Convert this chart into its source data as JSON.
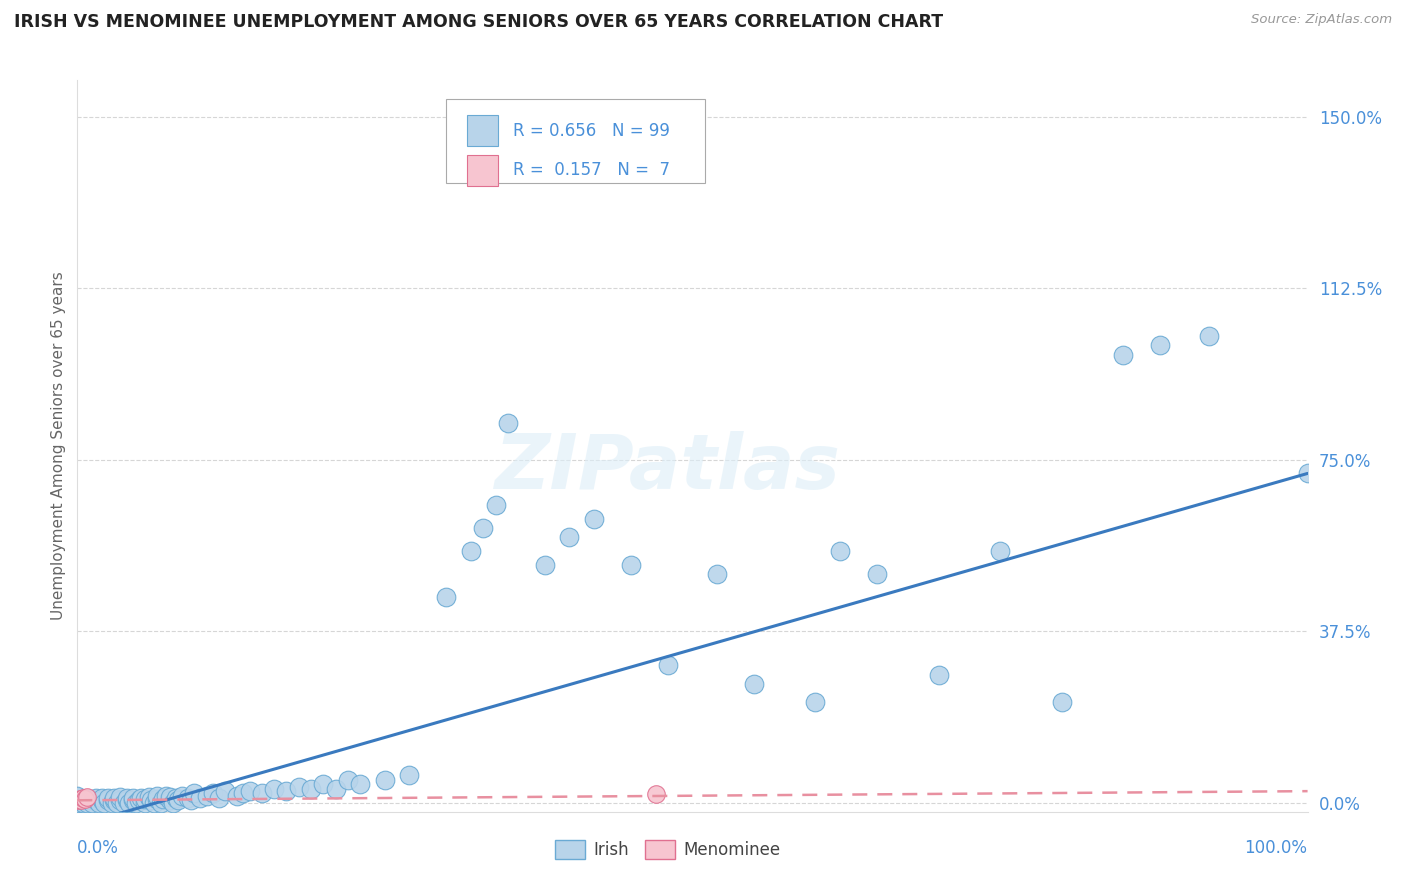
{
  "title": "IRISH VS MENOMINEE UNEMPLOYMENT AMONG SENIORS OVER 65 YEARS CORRELATION CHART",
  "source": "Source: ZipAtlas.com",
  "ylabel": "Unemployment Among Seniors over 65 years",
  "ytick_labels": [
    "0.0%",
    "37.5%",
    "75.0%",
    "112.5%",
    "150.0%"
  ],
  "ytick_values": [
    0.0,
    0.375,
    0.75,
    1.125,
    1.5
  ],
  "xmin": 0.0,
  "xmax": 1.0,
  "ymin": -0.02,
  "ymax": 1.58,
  "irish_color": "#b8d4ea",
  "irish_edge_color": "#6aaad4",
  "menominee_color": "#f7c5d0",
  "menominee_edge_color": "#e07090",
  "irish_line_color": "#3a7abf",
  "menominee_line_color": "#e890a0",
  "watermark": "ZIPatlas",
  "irish_R": "0.656",
  "irish_N": "99",
  "menominee_R": "0.157",
  "menominee_N": "7",
  "irish_x": [
    0.0,
    0.0,
    0.0,
    0.0,
    0.0,
    0.0,
    0.0,
    0.0,
    0.0,
    0.0,
    0.005,
    0.005,
    0.008,
    0.01,
    0.01,
    0.012,
    0.015,
    0.015,
    0.018,
    0.02,
    0.02,
    0.022,
    0.025,
    0.025,
    0.028,
    0.03,
    0.03,
    0.032,
    0.035,
    0.035,
    0.038,
    0.04,
    0.04,
    0.042,
    0.045,
    0.045,
    0.048,
    0.05,
    0.052,
    0.055,
    0.055,
    0.058,
    0.06,
    0.062,
    0.065,
    0.065,
    0.068,
    0.07,
    0.072,
    0.075,
    0.075,
    0.078,
    0.08,
    0.082,
    0.085,
    0.09,
    0.092,
    0.095,
    0.1,
    0.105,
    0.11,
    0.115,
    0.12,
    0.13,
    0.135,
    0.14,
    0.15,
    0.16,
    0.17,
    0.18,
    0.19,
    0.2,
    0.21,
    0.22,
    0.23,
    0.25,
    0.27,
    0.3,
    0.32,
    0.33,
    0.34,
    0.35,
    0.38,
    0.4,
    0.42,
    0.45,
    0.48,
    0.52,
    0.55,
    0.6,
    0.62,
    0.65,
    0.7,
    0.75,
    0.8,
    0.85,
    0.88,
    0.92,
    1.0
  ],
  "irish_y": [
    0.0,
    0.0,
    0.0,
    0.0,
    0.005,
    0.005,
    0.008,
    0.01,
    0.012,
    0.015,
    0.0,
    0.005,
    0.0,
    0.005,
    0.008,
    0.0,
    0.005,
    0.01,
    0.0,
    0.005,
    0.01,
    0.0,
    0.005,
    0.01,
    0.0,
    0.005,
    0.01,
    0.0,
    0.005,
    0.012,
    0.0,
    0.005,
    0.01,
    0.0,
    0.005,
    0.01,
    0.0,
    0.005,
    0.01,
    0.0,
    0.008,
    0.012,
    0.005,
    0.0,
    0.008,
    0.015,
    0.0,
    0.008,
    0.015,
    0.005,
    0.012,
    0.0,
    0.01,
    0.005,
    0.015,
    0.01,
    0.005,
    0.02,
    0.01,
    0.015,
    0.02,
    0.01,
    0.025,
    0.015,
    0.02,
    0.025,
    0.02,
    0.03,
    0.025,
    0.035,
    0.03,
    0.04,
    0.03,
    0.05,
    0.04,
    0.05,
    0.06,
    0.45,
    0.55,
    0.6,
    0.65,
    0.83,
    0.52,
    0.58,
    0.62,
    0.52,
    0.3,
    0.5,
    0.26,
    0.22,
    0.55,
    0.5,
    0.28,
    0.55,
    0.22,
    0.98,
    1.0,
    1.02,
    0.72
  ],
  "menominee_x": [
    0.0,
    0.002,
    0.003,
    0.005,
    0.006,
    0.008,
    0.47
  ],
  "menominee_y": [
    0.005,
    0.008,
    0.005,
    0.01,
    0.008,
    0.012,
    0.018
  ]
}
